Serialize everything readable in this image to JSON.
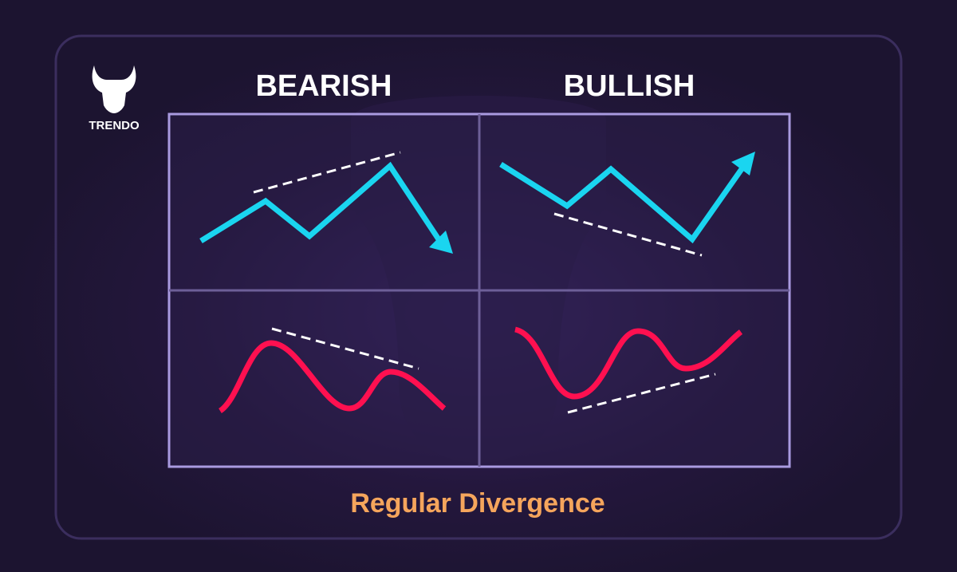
{
  "logo": {
    "text": "TRENDO"
  },
  "columns": [
    "BEARISH",
    "BULLISH"
  ],
  "caption": "Regular Divergence"
}
